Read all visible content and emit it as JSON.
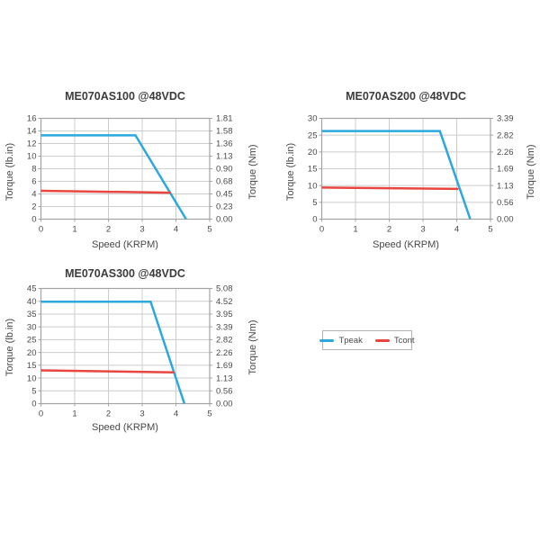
{
  "page": {
    "background": "#ffffff"
  },
  "colors": {
    "tpeak": "#2CA8DF",
    "tcont": "#E8463F",
    "grid": "#cccccc",
    "plot_border": "#a3a3a3",
    "tick": "#a3a3a3",
    "text": "#474747"
  },
  "legend": {
    "items": [
      {
        "label": "Tpeak",
        "color": "tpeak"
      },
      {
        "label": "Tcont",
        "color": "tcont"
      }
    ]
  },
  "chart_data": [
    {
      "type": "line",
      "title": "ME070AS100 @48VDC",
      "xlabel": "Speed (KRPM)",
      "ylabel_left": "Torque (lb.in)",
      "ylabel_right": "Torque (Nm)",
      "xlim": [
        0,
        5
      ],
      "ylim": [
        0,
        16
      ],
      "xticks": [
        0,
        1,
        2,
        3,
        4,
        5
      ],
      "yticks_left": [
        0,
        2,
        4,
        6,
        8,
        10,
        12,
        14,
        16
      ],
      "yticks_right_labels": [
        "0.00",
        "0.23",
        "0.45",
        "0.68",
        "0.90",
        "1.13",
        "1.36",
        "1.58",
        "1.81"
      ],
      "grid": true,
      "series": [
        {
          "name": "Tpeak",
          "color": "tpeak",
          "points": [
            [
              0,
              13.3
            ],
            [
              2.8,
              13.3
            ],
            [
              4.3,
              0
            ]
          ]
        },
        {
          "name": "Tcont",
          "color": "tcont",
          "points": [
            [
              0,
              4.5
            ],
            [
              3.85,
              4.2
            ]
          ]
        }
      ]
    },
    {
      "type": "line",
      "title": "ME070AS200 @48VDC",
      "xlabel": "Speed (KRPM)",
      "ylabel_left": "Torque (lb.in)",
      "ylabel_right": "Torque (Nm)",
      "xlim": [
        0,
        5
      ],
      "ylim": [
        0,
        30
      ],
      "xticks": [
        0,
        1,
        2,
        3,
        4,
        5
      ],
      "yticks_left": [
        0,
        5,
        10,
        15,
        20,
        25,
        30
      ],
      "yticks_right_labels": [
        "0.00",
        "0.56",
        "1.13",
        "1.69",
        "2.26",
        "2.82",
        "3.39"
      ],
      "grid": true,
      "series": [
        {
          "name": "Tpeak",
          "color": "tpeak",
          "points": [
            [
              0,
              26.2
            ],
            [
              3.5,
              26.2
            ],
            [
              4.4,
              0
            ]
          ]
        },
        {
          "name": "Tcont",
          "color": "tcont",
          "points": [
            [
              0,
              9.4
            ],
            [
              4.05,
              9.0
            ]
          ]
        }
      ]
    },
    {
      "type": "line",
      "title": "ME070AS300 @48VDC",
      "xlabel": "Speed (KRPM)",
      "ylabel_left": "Torque (lb.in)",
      "ylabel_right": "Torque (Nm)",
      "xlim": [
        0,
        5
      ],
      "ylim": [
        0,
        45
      ],
      "xticks": [
        0,
        1,
        2,
        3,
        4,
        5
      ],
      "yticks_left": [
        0,
        5,
        10,
        15,
        20,
        25,
        30,
        35,
        40,
        45
      ],
      "yticks_right_labels": [
        "0.00",
        "0.56",
        "1.13",
        "1.69",
        "2.26",
        "2.82",
        "3.39",
        "3.95",
        "4.52",
        "5.08"
      ],
      "grid": true,
      "series": [
        {
          "name": "Tpeak",
          "color": "tpeak",
          "points": [
            [
              0,
              39.8
            ],
            [
              3.25,
              39.8
            ],
            [
              4.25,
              0
            ]
          ]
        },
        {
          "name": "Tcont",
          "color": "tcont",
          "points": [
            [
              0,
              13.0
            ],
            [
              3.95,
              12.2
            ]
          ]
        }
      ]
    }
  ]
}
